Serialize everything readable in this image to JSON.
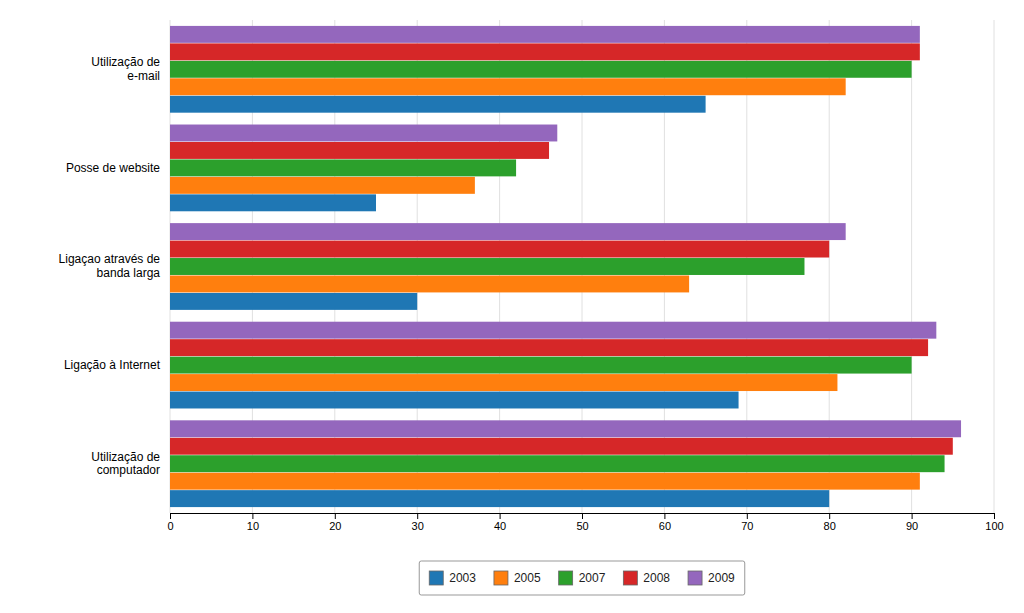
{
  "chart_data": {
    "type": "bar",
    "orientation": "horizontal",
    "categories": [
      "Utilização de\ne-mail",
      "Posse de website",
      "Ligaçao através de\nbanda larga",
      "Ligação à Internet",
      "Utilização de\ncomputador"
    ],
    "series": [
      {
        "name": "2003",
        "values": [
          65,
          25,
          30,
          69,
          80
        ]
      },
      {
        "name": "2005",
        "values": [
          82,
          37,
          63,
          81,
          91
        ]
      },
      {
        "name": "2007",
        "values": [
          90,
          42,
          77,
          90,
          94
        ]
      },
      {
        "name": "2008",
        "values": [
          91,
          46,
          80,
          92,
          95
        ]
      },
      {
        "name": "2009",
        "values": [
          91,
          47,
          82,
          93,
          96
        ]
      }
    ],
    "xlim": [
      0,
      100
    ],
    "xticks": [
      0,
      10,
      20,
      30,
      40,
      50,
      60,
      70,
      80,
      90,
      100
    ],
    "grid": true,
    "legend": "bottom"
  }
}
